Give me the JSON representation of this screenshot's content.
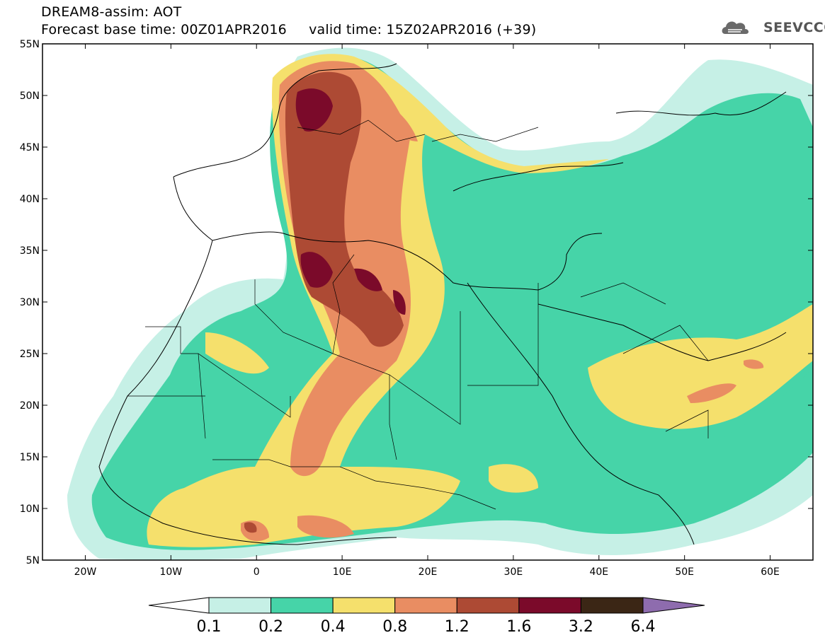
{
  "header": {
    "line1": "DREAM8-assim: AOT",
    "line2": "Forecast base time: 00Z01APR2016     valid time: 15Z02APR2016 (+39)"
  },
  "logo": {
    "text": "SEEVCCC",
    "icon": "cloud-icon"
  },
  "map": {
    "projection": "lon-lat",
    "lon_range": [
      -25,
      65
    ],
    "lat_range": [
      5,
      55
    ],
    "x_ticks": [
      "20W",
      "10W",
      "0",
      "10E",
      "20E",
      "30E",
      "40E",
      "50E",
      "60E"
    ],
    "y_ticks": [
      "55N",
      "50N",
      "45N",
      "40N",
      "35N",
      "30N",
      "25N",
      "20N",
      "15N",
      "10N",
      "5N"
    ]
  },
  "colorbar": {
    "labels": [
      "0.1",
      "0.2",
      "0.4",
      "0.8",
      "1.2",
      "1.6",
      "3.2",
      "6.4"
    ],
    "colors": [
      "#ffffff",
      "#c6f0e6",
      "#46d4a8",
      "#f5e06c",
      "#e98d62",
      "#ad4a34",
      "#7b0a2a",
      "#3b2615",
      "#8e6cae"
    ]
  }
}
